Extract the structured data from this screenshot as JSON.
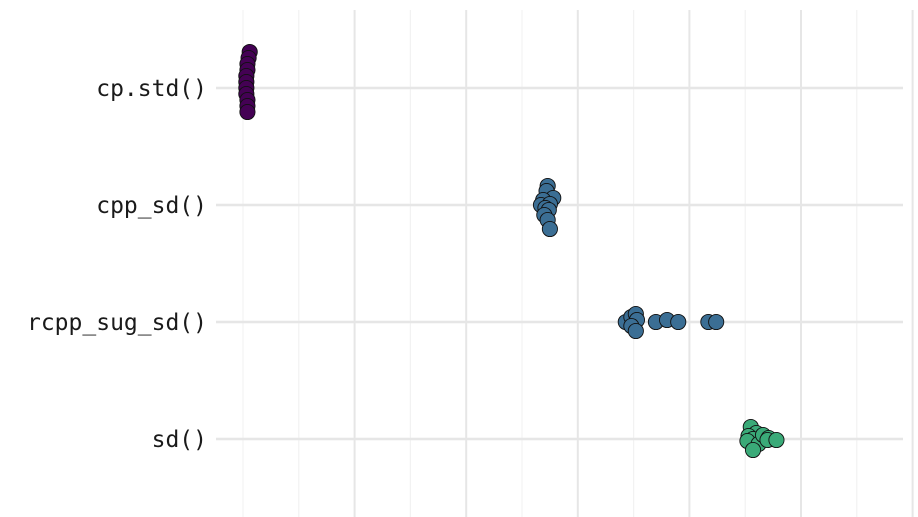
{
  "chart_data": {
    "type": "scatter",
    "title": "",
    "xlabel": "",
    "ylabel": "",
    "x_tick_labels_visible": false,
    "xlim": [
      0,
      6
    ],
    "x_major_gridlines": [
      1,
      2,
      3,
      4,
      5,
      6
    ],
    "x_minor_gridlines": [
      0.5,
      1.5,
      2.5,
      3.5,
      4.5,
      5.5
    ],
    "grid": true,
    "legend": "none",
    "categories": [
      "cp.std()",
      "cpp_sd()",
      "rcpp_sug_sd()",
      "sd()"
    ],
    "series": [
      {
        "category": "cp.std()",
        "color": "#440154",
        "points": [
          {
            "x": 0.06,
            "y": 0.36
          },
          {
            "x": 0.05,
            "y": 0.3
          },
          {
            "x": 0.04,
            "y": 0.24
          },
          {
            "x": 0.04,
            "y": 0.18
          },
          {
            "x": 0.03,
            "y": 0.12
          },
          {
            "x": 0.03,
            "y": 0.06
          },
          {
            "x": 0.03,
            "y": 0.0
          },
          {
            "x": 0.03,
            "y": -0.06
          },
          {
            "x": 0.04,
            "y": -0.12
          },
          {
            "x": 0.04,
            "y": -0.18
          },
          {
            "x": 0.04,
            "y": -0.24
          }
        ]
      },
      {
        "category": "cpp_sd()",
        "color": "#3b6e94",
        "points": [
          {
            "x": 2.73,
            "y": 0.19
          },
          {
            "x": 2.72,
            "y": 0.14
          },
          {
            "x": 2.78,
            "y": 0.07
          },
          {
            "x": 2.69,
            "y": 0.05
          },
          {
            "x": 2.67,
            "y": 0.0
          },
          {
            "x": 2.75,
            "y": 0.01
          },
          {
            "x": 2.71,
            "y": -0.03
          },
          {
            "x": 2.74,
            "y": -0.05
          },
          {
            "x": 2.7,
            "y": -0.1
          },
          {
            "x": 2.73,
            "y": -0.15
          },
          {
            "x": 2.75,
            "y": -0.24
          }
        ]
      },
      {
        "category": "rcpp_sug_sd()",
        "color": "#3b6e94",
        "points": [
          {
            "x": 3.43,
            "y": 0.0
          },
          {
            "x": 3.48,
            "y": 0.05
          },
          {
            "x": 3.52,
            "y": 0.08
          },
          {
            "x": 3.53,
            "y": 0.02
          },
          {
            "x": 3.48,
            "y": -0.04
          },
          {
            "x": 3.52,
            "y": -0.09
          },
          {
            "x": 3.7,
            "y": 0.0
          },
          {
            "x": 3.8,
            "y": 0.02
          },
          {
            "x": 3.9,
            "y": 0.0
          },
          {
            "x": 4.17,
            "y": 0.0
          },
          {
            "x": 4.24,
            "y": 0.0
          }
        ]
      },
      {
        "category": "sd()",
        "color": "#3aaa78",
        "points": [
          {
            "x": 4.55,
            "y": 0.12
          },
          {
            "x": 4.6,
            "y": 0.06
          },
          {
            "x": 4.53,
            "y": 0.03
          },
          {
            "x": 4.57,
            "y": 0.0
          },
          {
            "x": 4.52,
            "y": -0.02
          },
          {
            "x": 4.62,
            "y": -0.05
          },
          {
            "x": 4.66,
            "y": 0.04
          },
          {
            "x": 4.71,
            "y": 0.01
          },
          {
            "x": 4.7,
            "y": -0.01
          },
          {
            "x": 4.78,
            "y": -0.01
          },
          {
            "x": 4.57,
            "y": -0.11
          }
        ]
      }
    ]
  }
}
